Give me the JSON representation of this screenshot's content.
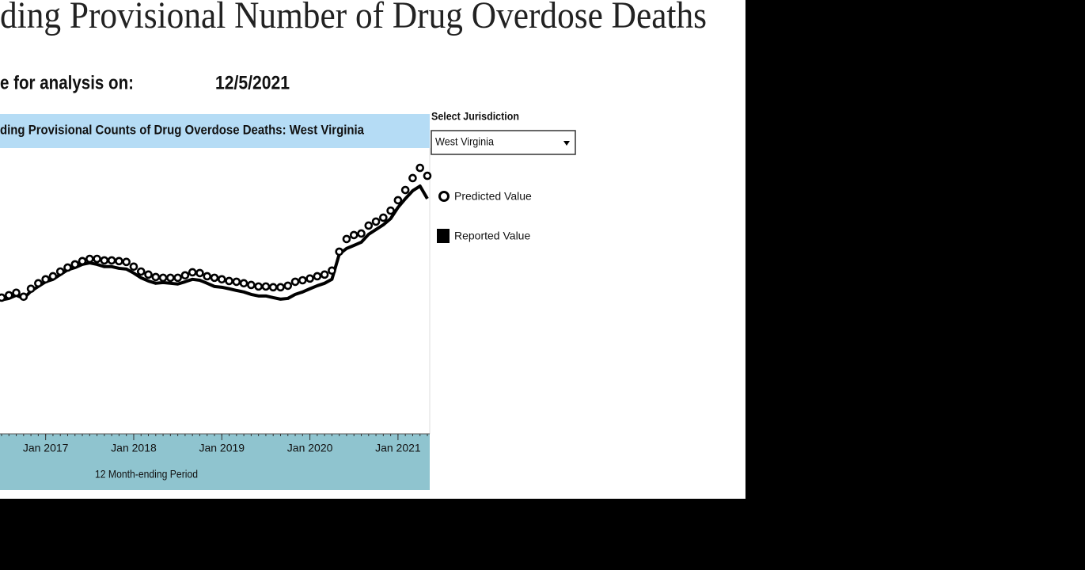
{
  "header": {
    "title": "ding Provisional Number of Drug Overdose Deaths",
    "date_label": "e for analysis on:",
    "date": "12/5/2021"
  },
  "controls": {
    "label": "Select Jurisdiction",
    "selected": "West Virginia"
  },
  "chart_data": {
    "type": "line",
    "title": "ding Provisional Counts of Drug Overdose Deaths: West Virginia",
    "x_label": "12 Month-ending Period",
    "x": [
      "2016-07",
      "2016-08",
      "2016-09",
      "2016-10",
      "2016-11",
      "2016-12",
      "2017-01",
      "2017-02",
      "2017-03",
      "2017-04",
      "2017-05",
      "2017-06",
      "2017-07",
      "2017-08",
      "2017-09",
      "2017-10",
      "2017-11",
      "2017-12",
      "2018-01",
      "2018-02",
      "2018-03",
      "2018-04",
      "2018-05",
      "2018-06",
      "2018-07",
      "2018-08",
      "2018-09",
      "2018-10",
      "2018-11",
      "2018-12",
      "2019-01",
      "2019-02",
      "2019-03",
      "2019-04",
      "2019-05",
      "2019-06",
      "2019-07",
      "2019-08",
      "2019-09",
      "2019-10",
      "2019-11",
      "2019-12",
      "2020-01",
      "2020-02",
      "2020-03",
      "2020-04",
      "2020-05",
      "2020-06",
      "2020-07",
      "2020-08",
      "2020-09",
      "2020-10",
      "2020-11",
      "2020-12",
      "2021-01",
      "2021-02",
      "2021-03",
      "2021-04",
      "2021-05"
    ],
    "xlim": [
      "2016-07",
      "2021-05"
    ],
    "xticks": [
      {
        "value": "2017-01",
        "label": "Jan 2017"
      },
      {
        "value": "2018-01",
        "label": "Jan 2018"
      },
      {
        "value": "2019-01",
        "label": "Jan 2019"
      },
      {
        "value": "2020-01",
        "label": "Jan 2020"
      },
      {
        "value": "2021-01",
        "label": "Jan 2021"
      }
    ],
    "ylim": [
      150,
      1640
    ],
    "series": [
      {
        "name": "Predicted Value",
        "color": "#000000",
        "style": "markers",
        "values": [
          870,
          883,
          896,
          875,
          917,
          946,
          967,
          983,
          1008,
          1029,
          1046,
          1063,
          1075,
          1075,
          1067,
          1067,
          1063,
          1059,
          1034,
          1008,
          992,
          979,
          975,
          975,
          975,
          988,
          1004,
          1000,
          983,
          975,
          967,
          958,
          954,
          946,
          937,
          929,
          929,
          925,
          925,
          933,
          954,
          962,
          971,
          983,
          992,
          1013,
          1113,
          1180,
          1201,
          1209,
          1251,
          1272,
          1293,
          1330,
          1385,
          1439,
          1502,
          1556,
          1514
        ]
      },
      {
        "name": "Reported Value",
        "color": "#000000",
        "style": "line",
        "values": [
          858,
          866,
          883,
          866,
          904,
          929,
          954,
          967,
          992,
          1017,
          1029,
          1046,
          1054,
          1046,
          1034,
          1034,
          1025,
          1021,
          1000,
          975,
          958,
          946,
          950,
          946,
          942,
          954,
          967,
          962,
          946,
          929,
          925,
          917,
          908,
          900,
          887,
          879,
          879,
          870,
          862,
          866,
          887,
          900,
          917,
          933,
          946,
          967,
          1100,
          1130,
          1146,
          1163,
          1205,
          1230,
          1255,
          1288,
          1347,
          1393,
          1435,
          1460,
          1393
        ]
      }
    ]
  }
}
